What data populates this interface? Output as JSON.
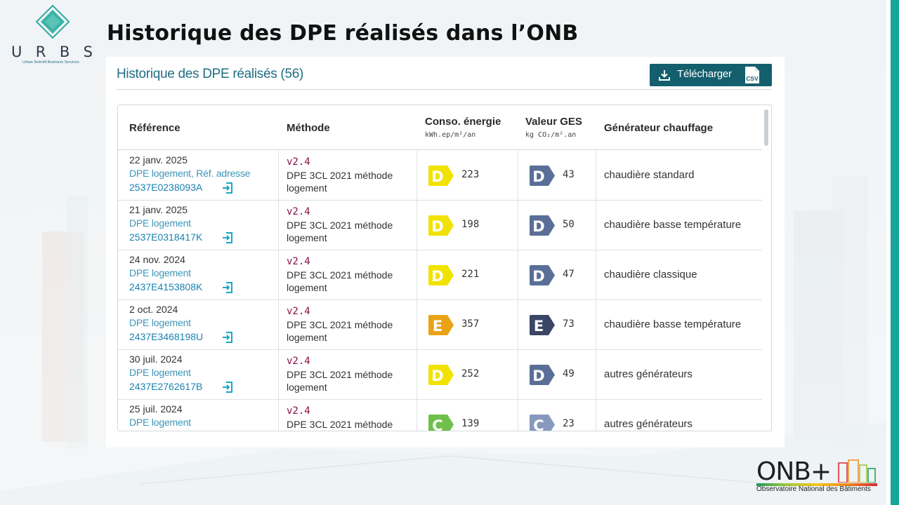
{
  "brand": {
    "urbs_letters": [
      "U",
      "R",
      "B",
      "S"
    ],
    "urbs_tagline": "Urban Retrofit Business Services",
    "onb_name": "ONB+",
    "onb_subtitle": "Observatoire National des Bâtiments"
  },
  "page": {
    "title": "Historique des DPE réalisés dans l’ONB"
  },
  "panel": {
    "title": "Historique des DPE réalisés (56)",
    "download_label": "Télécharger",
    "csv_label": "CSV"
  },
  "table": {
    "headers": {
      "reference": "Référence",
      "method": "Méthode",
      "energy": "Conso. énergie",
      "energy_unit": "kWh.ep/m²/an",
      "ges": "Valeur GES",
      "ges_unit": "kg CO₂/m².an",
      "generator": "Générateur chauffage"
    },
    "rows": [
      {
        "date": "22 janv. 2025",
        "type": "DPE logement, Réf. adresse",
        "ref": "2537E0238093A",
        "version": "v2.4",
        "method": "DPE 3CL 2021 méthode logement",
        "energy_class": "D",
        "energy_value": "223",
        "ges_class": "D",
        "ges_value": "43",
        "generator": "chaudière standard"
      },
      {
        "date": "21 janv. 2025",
        "type": "DPE logement",
        "ref": "2537E0318417K",
        "version": "v2.4",
        "method": "DPE 3CL 2021 méthode logement",
        "energy_class": "D",
        "energy_value": "198",
        "ges_class": "D",
        "ges_value": "50",
        "generator": "chaudière basse température"
      },
      {
        "date": "24 nov. 2024",
        "type": "DPE logement",
        "ref": "2437E4153808K",
        "version": "v2.4",
        "method": "DPE 3CL 2021 méthode logement",
        "energy_class": "D",
        "energy_value": "221",
        "ges_class": "D",
        "ges_value": "47",
        "generator": "chaudière classique"
      },
      {
        "date": "2 oct. 2024",
        "type": "DPE logement",
        "ref": "2437E3468198U",
        "version": "v2.4",
        "method": "DPE 3CL 2021 méthode logement",
        "energy_class": "E",
        "energy_value": "357",
        "ges_class": "E",
        "ges_value": "73",
        "generator": "chaudière basse température"
      },
      {
        "date": "30 juil. 2024",
        "type": "DPE logement",
        "ref": "2437E2762617B",
        "version": "v2.4",
        "method": "DPE 3CL 2021 méthode logement",
        "energy_class": "D",
        "energy_value": "252",
        "ges_class": "D",
        "ges_value": "49",
        "generator": "autres générateurs"
      },
      {
        "date": "25 juil. 2024",
        "type": "DPE logement",
        "ref": "",
        "version": "v2.4",
        "method": "DPE 3CL 2021 méthode",
        "energy_class": "C",
        "energy_value": "139",
        "ges_class": "C",
        "ges_value": "23",
        "generator": "autres générateurs"
      }
    ]
  },
  "colors": {
    "teal_dark": "#135f6d",
    "title_blue": "#1f6e82",
    "link_blue": "#1a82b0",
    "version_purple": "#8a1047",
    "energy_D": "#f2e200",
    "energy_E": "#e8a317",
    "energy_C": "#6fbf4a",
    "ges_D": "#5a6f97",
    "ges_E": "#3b4566",
    "ges_C": "#8799bd"
  }
}
